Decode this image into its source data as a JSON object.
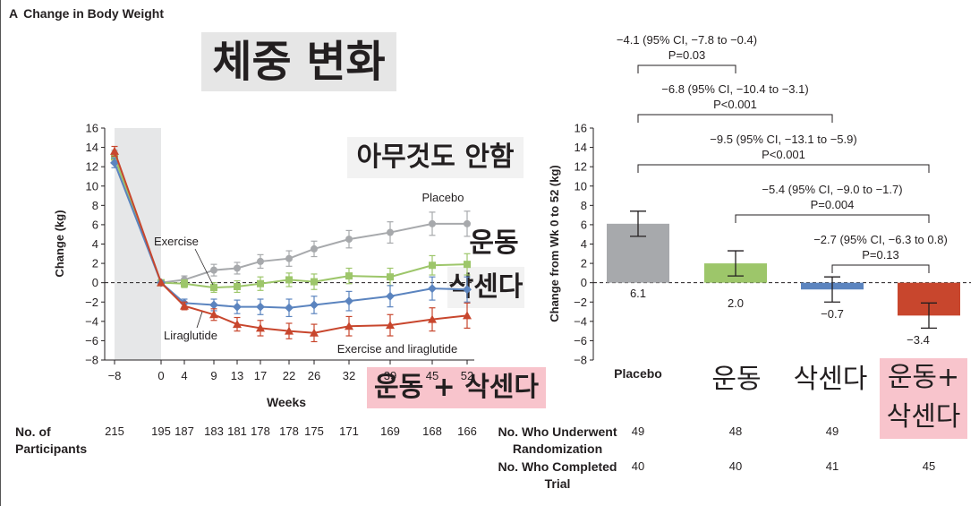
{
  "header": {
    "letter": "A",
    "title": "Change in Body Weight"
  },
  "korean_labels": {
    "title": "체중 변화",
    "placebo": "아무것도 안함",
    "exercise": "운동",
    "liraglutide": "삭센다",
    "combo_line": "운동 + 삭센다",
    "bar_exercise": "운동",
    "bar_liraglutide": "삭센다",
    "bar_combo_1": "운동+",
    "bar_combo_2": "삭센다"
  },
  "participants": {
    "label_line1": "No. of",
    "label_line2": "Participants",
    "counts": [
      "215",
      "195",
      "187",
      "183",
      "181",
      "178",
      "178",
      "175",
      "171",
      "169",
      "168",
      "166"
    ]
  },
  "bar_table": {
    "row1_label_1": "No. Who Underwent",
    "row1_label_2": "Randomization",
    "row1_values": [
      "49",
      "48",
      "49",
      ""
    ],
    "row2_label_1": "No. Who Completed",
    "row2_label_2": "Trial",
    "row2_values": [
      "40",
      "40",
      "41",
      "45"
    ]
  },
  "chart_data": [
    {
      "type": "line",
      "xlabel": "Weeks",
      "ylabel": "Change (kg)",
      "ylim": [
        -8,
        16
      ],
      "yticks": [
        -8,
        -6,
        -4,
        -2,
        0,
        2,
        4,
        6,
        8,
        10,
        12,
        14,
        16
      ],
      "xticks": [
        "-8",
        "0",
        "4",
        "9",
        "13",
        "17",
        "22",
        "26",
        "32",
        "39",
        "45",
        "52"
      ],
      "x": [
        -8,
        0,
        4,
        9,
        13,
        17,
        22,
        26,
        32,
        39,
        45,
        52
      ],
      "series": [
        {
          "name": "Placebo",
          "color": "#a7a9ac",
          "marker": "circle",
          "values": [
            13.2,
            0,
            0.3,
            1.3,
            1.5,
            2.2,
            2.5,
            3.5,
            4.5,
            5.2,
            6.1,
            6.1
          ],
          "err": [
            0.5,
            0,
            0.4,
            0.6,
            0.6,
            0.7,
            0.8,
            0.8,
            0.9,
            1.1,
            1.2,
            1.3
          ]
        },
        {
          "name": "Exercise",
          "color": "#9dc66a",
          "marker": "square",
          "values": [
            13.0,
            0,
            -0.1,
            -0.5,
            -0.4,
            -0.1,
            0.3,
            0.1,
            0.7,
            0.6,
            1.8,
            1.9
          ],
          "err": [
            0.5,
            0,
            0.4,
            0.5,
            0.6,
            0.7,
            0.7,
            0.8,
            0.8,
            0.9,
            1.0,
            1.1
          ]
        },
        {
          "name": "Liraglutide",
          "color": "#5b84bf",
          "marker": "diamond",
          "values": [
            12.4,
            0,
            -2.1,
            -2.3,
            -2.5,
            -2.5,
            -2.6,
            -2.3,
            -1.9,
            -1.4,
            -0.6,
            -0.7
          ],
          "err": [
            0.5,
            0,
            0.4,
            0.6,
            0.7,
            0.8,
            0.9,
            0.9,
            1.0,
            1.1,
            1.2,
            1.3
          ]
        },
        {
          "name": "Exercise and liraglutide",
          "color": "#c8462d",
          "marker": "triangle",
          "values": [
            13.6,
            0,
            -2.4,
            -3.3,
            -4.3,
            -4.7,
            -5.0,
            -5.2,
            -4.5,
            -4.4,
            -3.8,
            -3.4
          ],
          "err": [
            0.5,
            0,
            0.4,
            0.6,
            0.7,
            0.8,
            0.8,
            0.9,
            1.0,
            1.1,
            1.2,
            1.3
          ]
        }
      ]
    },
    {
      "type": "bar",
      "ylabel": "Change from Wk 0 to 52 (kg)",
      "ylim": [
        -8,
        16
      ],
      "yticks": [
        -8,
        -6,
        -4,
        -2,
        0,
        2,
        4,
        6,
        8,
        10,
        12,
        14,
        16
      ],
      "categories": [
        "Placebo",
        "",
        "",
        ""
      ],
      "values": [
        6.1,
        2.0,
        -0.7,
        -3.4
      ],
      "value_labels": [
        "6.1",
        "2.0",
        "−0.7",
        "−3.4"
      ],
      "err_low": [
        4.8,
        0.7,
        -2.0,
        -4.7
      ],
      "err_high": [
        7.4,
        3.3,
        0.6,
        -2.1
      ],
      "colors": [
        "#a7a9ac",
        "#9dc66a",
        "#5b84bf",
        "#c8462d"
      ],
      "comparisons": [
        {
          "from": 0,
          "to": 1,
          "line1": "−4.1 (95% CI, −7.8 to −0.4)",
          "line2": "P=0.03"
        },
        {
          "from": 0,
          "to": 2,
          "line1": "−6.8 (95% CI, −10.4 to −3.1)",
          "line2": "P<0.001"
        },
        {
          "from": 0,
          "to": 3,
          "line1": "−9.5 (95% CI, −13.1 to −5.9)",
          "line2": "P<0.001"
        },
        {
          "from": 1,
          "to": 3,
          "line1": "−5.4 (95% CI, −9.0 to −1.7)",
          "line2": "P=0.004"
        },
        {
          "from": 2,
          "to": 3,
          "line1": "−2.7 (95% CI, −6.3 to 0.8)",
          "line2": "P=0.13"
        }
      ]
    }
  ]
}
